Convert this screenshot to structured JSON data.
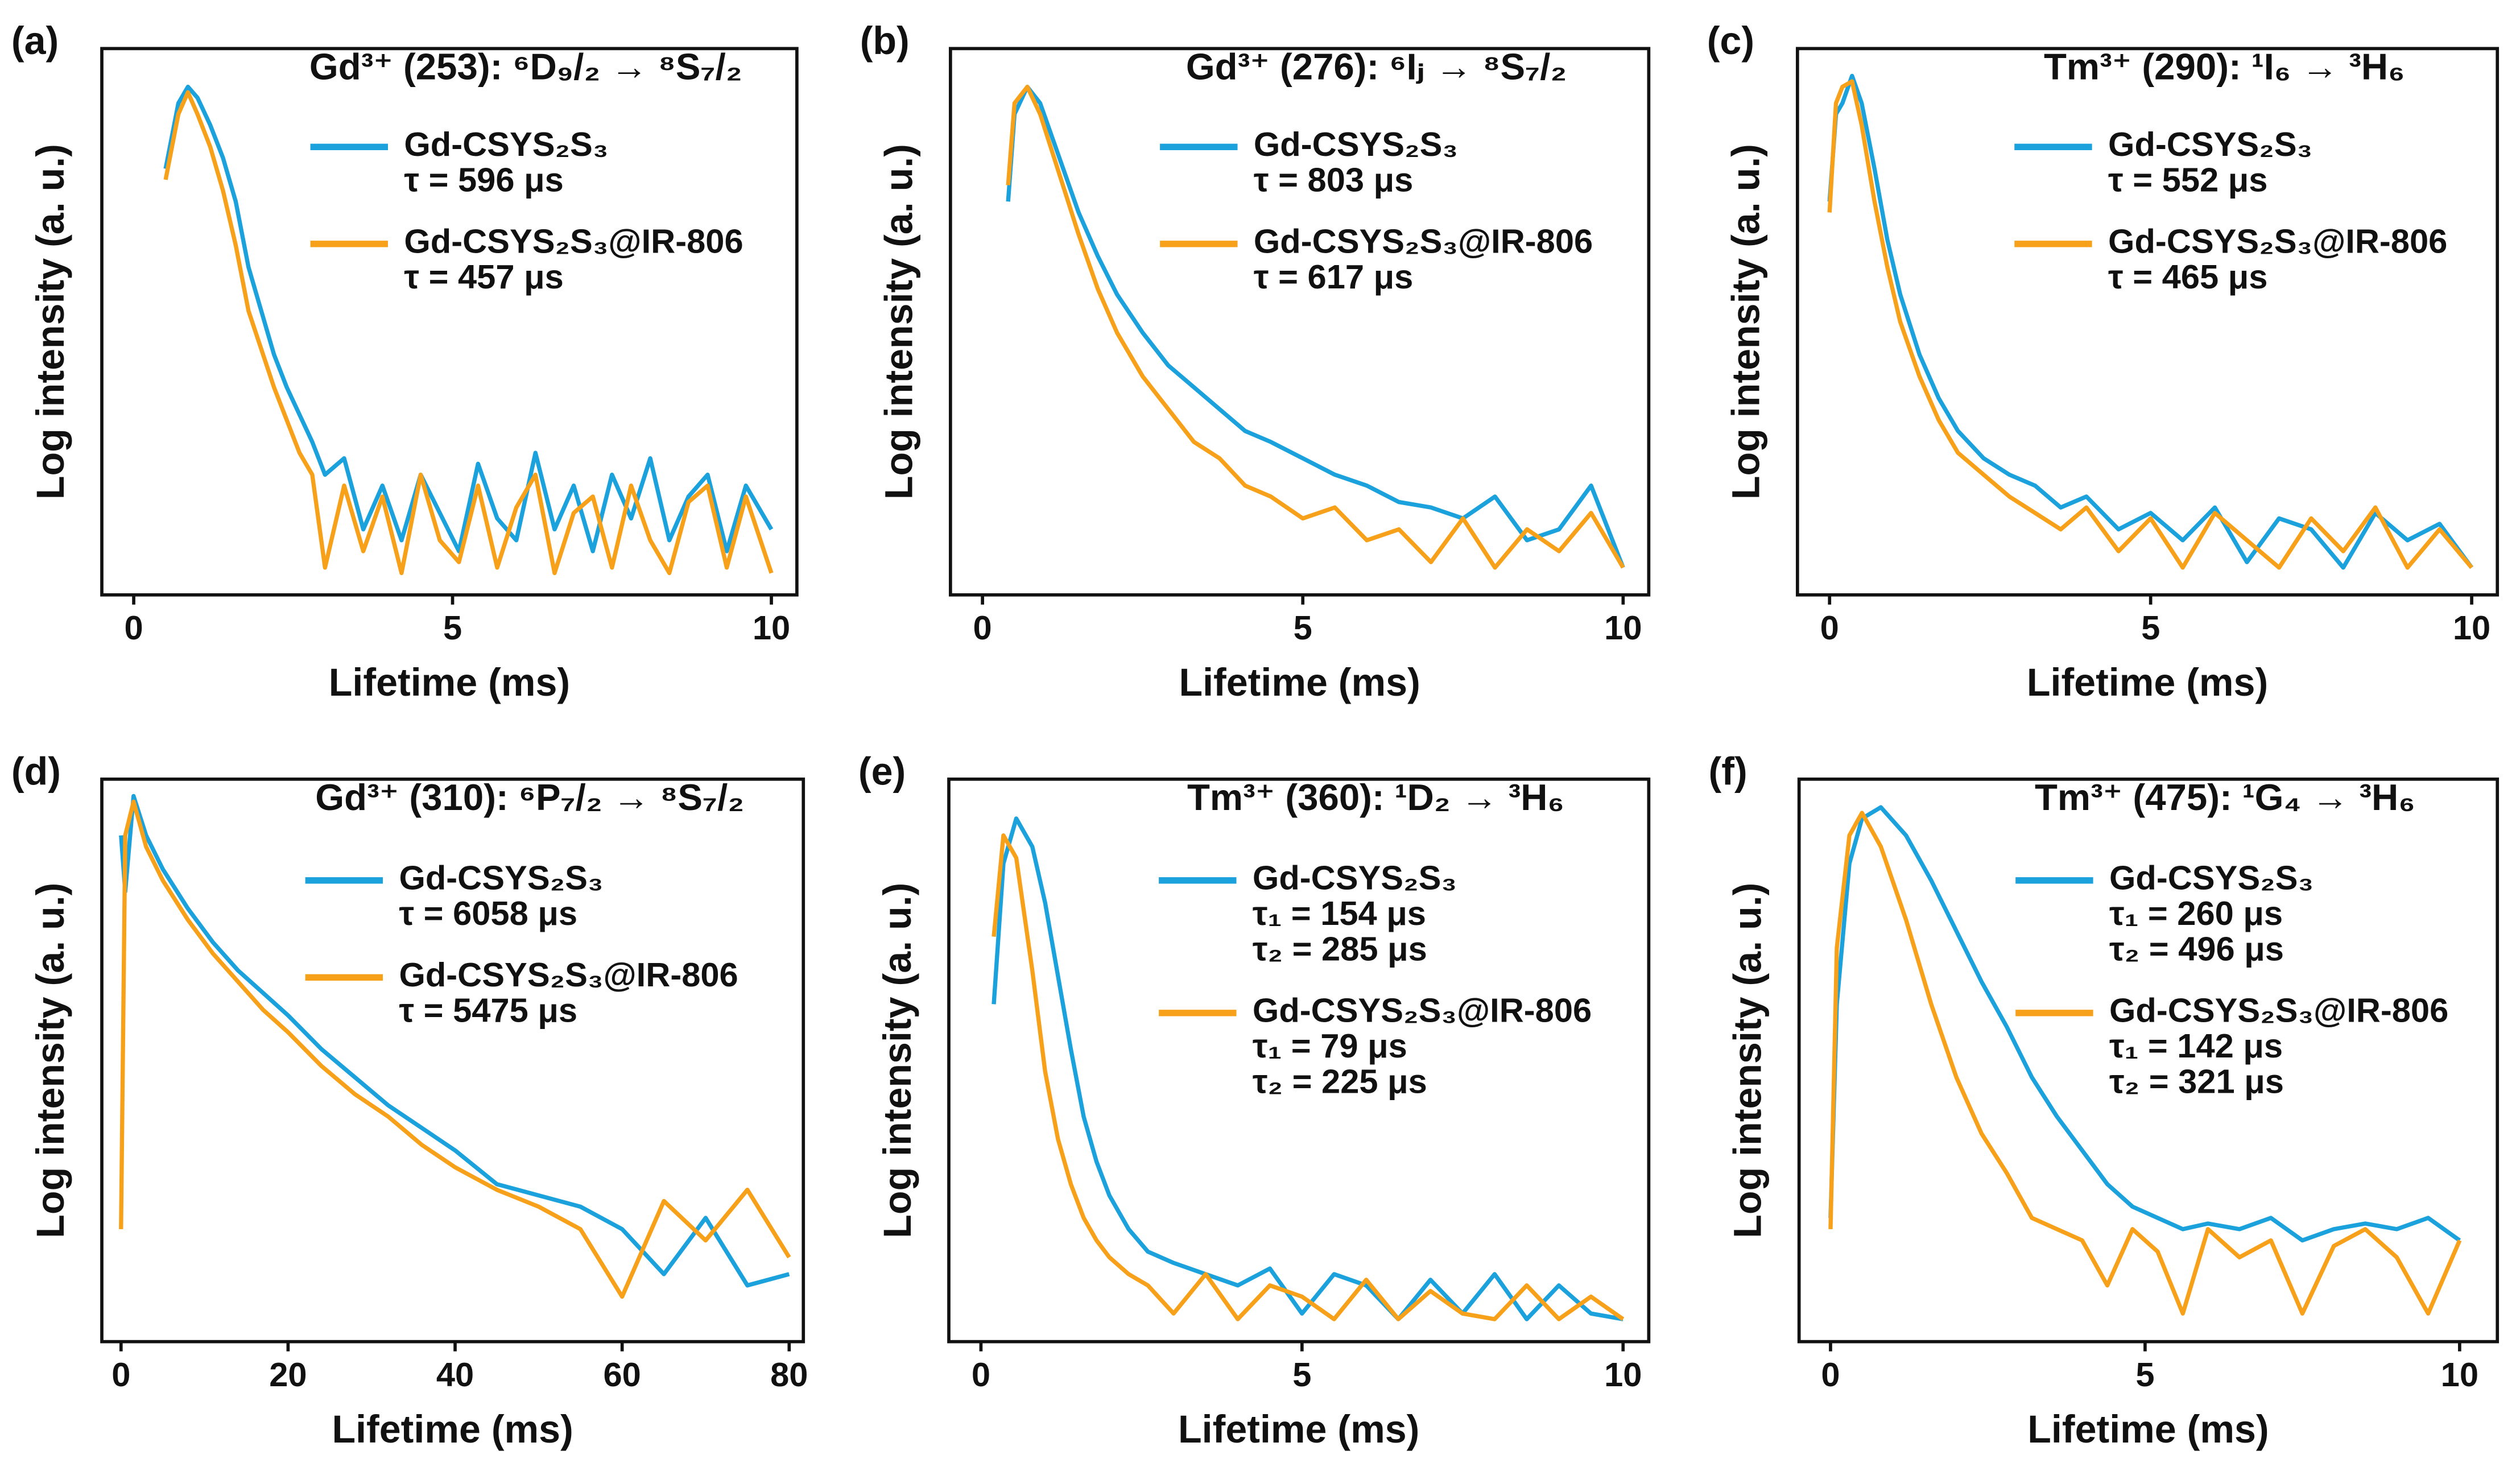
{
  "chart_data": [
    {
      "type": "line",
      "panel_label": "(a)",
      "title": "Gd³⁺ (253): ⁶D₉/₂ → ⁸S₇/₂",
      "x_label": "Lifetime (ms)",
      "y_label": "Log intensity (a. u.)",
      "xlim": [
        -0.5,
        10.4
      ],
      "xticks": [
        0,
        5,
        10
      ],
      "ylim": [
        0,
        1
      ],
      "x": [
        0.5,
        0.7,
        0.85,
        1.0,
        1.2,
        1.4,
        1.6,
        1.8,
        2.0,
        2.2,
        2.4,
        2.6,
        2.8,
        3.0,
        3.3,
        3.6,
        3.9,
        4.2,
        4.5,
        4.8,
        5.1,
        5.4,
        5.7,
        6.0,
        6.3,
        6.6,
        6.9,
        7.2,
        7.5,
        7.8,
        8.1,
        8.4,
        8.7,
        9.0,
        9.3,
        9.6,
        10.0
      ],
      "series": [
        {
          "name": "Gd-CSYS₂S₃",
          "color": "#1ba1db",
          "annotations": [
            "τ = 596 μs"
          ],
          "values": [
            0.78,
            0.9,
            0.93,
            0.91,
            0.86,
            0.8,
            0.72,
            0.6,
            0.52,
            0.44,
            0.38,
            0.33,
            0.28,
            0.22,
            0.25,
            0.12,
            0.2,
            0.1,
            0.22,
            0.15,
            0.08,
            0.24,
            0.14,
            0.1,
            0.26,
            0.12,
            0.2,
            0.08,
            0.22,
            0.14,
            0.25,
            0.1,
            0.18,
            0.22,
            0.08,
            0.2,
            0.12
          ]
        },
        {
          "name": "Gd-CSYS₂S₃@IR-806",
          "color": "#f7a11a",
          "annotations": [
            "τ = 457 μs"
          ],
          "values": [
            0.76,
            0.88,
            0.92,
            0.88,
            0.82,
            0.74,
            0.64,
            0.52,
            0.45,
            0.38,
            0.32,
            0.26,
            0.22,
            0.05,
            0.2,
            0.08,
            0.18,
            0.04,
            0.22,
            0.1,
            0.06,
            0.2,
            0.05,
            0.16,
            0.22,
            0.04,
            0.15,
            0.18,
            0.05,
            0.2,
            0.1,
            0.04,
            0.17,
            0.2,
            0.05,
            0.18,
            0.04
          ]
        }
      ]
    },
    {
      "type": "line",
      "panel_label": "(b)",
      "title": "Gd³⁺ (276): ⁶Iⱼ → ⁸S₇/₂",
      "x_label": "Lifetime (ms)",
      "y_label": "Log intensity (a. u.)",
      "xlim": [
        -0.5,
        10.4
      ],
      "xticks": [
        0,
        5,
        10
      ],
      "ylim": [
        0,
        1
      ],
      "x": [
        0.4,
        0.5,
        0.7,
        0.9,
        1.2,
        1.5,
        1.8,
        2.1,
        2.5,
        2.9,
        3.3,
        3.7,
        4.1,
        4.5,
        5.0,
        5.5,
        6.0,
        6.5,
        7.0,
        7.5,
        8.0,
        8.5,
        9.0,
        9.5,
        10.0
      ],
      "series": [
        {
          "name": "Gd-CSYS₂S₃",
          "color": "#1ba1db",
          "annotations": [
            "τ = 803 μs"
          ],
          "values": [
            0.72,
            0.88,
            0.93,
            0.9,
            0.8,
            0.7,
            0.62,
            0.55,
            0.48,
            0.42,
            0.38,
            0.34,
            0.3,
            0.28,
            0.25,
            0.22,
            0.2,
            0.17,
            0.16,
            0.14,
            0.18,
            0.1,
            0.12,
            0.2,
            0.05
          ]
        },
        {
          "name": "Gd-CSYS₂S₃@IR-806",
          "color": "#f7a11a",
          "annotations": [
            "τ = 617 μs"
          ],
          "values": [
            0.75,
            0.9,
            0.93,
            0.88,
            0.77,
            0.66,
            0.56,
            0.48,
            0.4,
            0.34,
            0.28,
            0.25,
            0.2,
            0.18,
            0.14,
            0.16,
            0.1,
            0.12,
            0.06,
            0.14,
            0.05,
            0.12,
            0.08,
            0.15,
            0.05
          ]
        }
      ]
    },
    {
      "type": "line",
      "panel_label": "(c)",
      "title": "Tm³⁺ (290): ¹I₆ → ³H₆",
      "x_label": "Lifetime (ms)",
      "y_label": "Log intensity (a. u.)",
      "xlim": [
        -0.5,
        10.4
      ],
      "xticks": [
        0,
        5,
        10
      ],
      "ylim": [
        0,
        1
      ],
      "x": [
        0,
        0.1,
        0.2,
        0.35,
        0.5,
        0.7,
        0.9,
        1.1,
        1.4,
        1.7,
        2.0,
        2.4,
        2.8,
        3.2,
        3.6,
        4.0,
        4.5,
        5.0,
        5.5,
        6.0,
        6.5,
        7.0,
        7.5,
        8.0,
        8.5,
        9.0,
        9.5,
        10.0
      ],
      "series": [
        {
          "name": "Gd-CSYS₂S₃",
          "color": "#1ba1db",
          "annotations": [
            "τ = 552 μs"
          ],
          "values": [
            0.72,
            0.88,
            0.9,
            0.95,
            0.9,
            0.78,
            0.65,
            0.55,
            0.44,
            0.36,
            0.3,
            0.25,
            0.22,
            0.2,
            0.16,
            0.18,
            0.12,
            0.15,
            0.1,
            0.16,
            0.06,
            0.14,
            0.12,
            0.05,
            0.15,
            0.1,
            0.13,
            0.05
          ]
        },
        {
          "name": "Gd-CSYS₂S₃@IR-806",
          "color": "#f7a11a",
          "annotations": [
            "τ = 465 μs"
          ],
          "values": [
            0.7,
            0.9,
            0.93,
            0.94,
            0.86,
            0.72,
            0.6,
            0.5,
            0.4,
            0.32,
            0.26,
            0.22,
            0.18,
            0.15,
            0.12,
            0.16,
            0.08,
            0.14,
            0.05,
            0.15,
            0.1,
            0.05,
            0.14,
            0.08,
            0.16,
            0.05,
            0.12,
            0.05
          ]
        }
      ]
    },
    {
      "type": "line",
      "panel_label": "(d)",
      "title": "Gd³⁺ (310): ⁶P₇/₂ → ⁸S₇/₂",
      "x_label": "Lifetime (ms)",
      "y_label": "Log intensity (a. u.)",
      "xlim": [
        -2.3,
        81.7
      ],
      "xticks": [
        0,
        20,
        40,
        60,
        80
      ],
      "ylim": [
        0,
        1
      ],
      "x": [
        0,
        0.5,
        1.5,
        3,
        5,
        8,
        11,
        14,
        17,
        20,
        24,
        28,
        32,
        36,
        40,
        45,
        50,
        55,
        60,
        65,
        70,
        75,
        80
      ],
      "series": [
        {
          "name": "Gd-CSYS₂S₃",
          "color": "#1ba1db",
          "annotations": [
            "τ = 6058 μs"
          ],
          "values": [
            0.9,
            0.8,
            0.97,
            0.9,
            0.84,
            0.77,
            0.71,
            0.66,
            0.62,
            0.58,
            0.52,
            0.47,
            0.42,
            0.38,
            0.34,
            0.28,
            0.26,
            0.24,
            0.2,
            0.12,
            0.22,
            0.1,
            0.12
          ]
        },
        {
          "name": "Gd-CSYS₂S₃@IR-806",
          "color": "#f7a11a",
          "annotations": [
            "τ = 5475 μs"
          ],
          "values": [
            0.2,
            0.9,
            0.96,
            0.88,
            0.82,
            0.75,
            0.69,
            0.64,
            0.59,
            0.55,
            0.49,
            0.44,
            0.4,
            0.35,
            0.31,
            0.27,
            0.24,
            0.2,
            0.08,
            0.25,
            0.18,
            0.27,
            0.15
          ]
        }
      ]
    },
    {
      "type": "line",
      "panel_label": "(e)",
      "title": "Tm³⁺ (360): ¹D₂ → ³H₆",
      "x_label": "Lifetime (ms)",
      "y_label": "Log intensity (a. u.)",
      "xlim": [
        -0.5,
        10.4
      ],
      "xticks": [
        0,
        5,
        10
      ],
      "ylim": [
        0,
        1
      ],
      "x": [
        0.2,
        0.35,
        0.55,
        0.8,
        1.0,
        1.2,
        1.4,
        1.6,
        1.8,
        2.0,
        2.3,
        2.6,
        3.0,
        3.5,
        4.0,
        4.5,
        5.0,
        5.5,
        6.0,
        6.5,
        7.0,
        7.5,
        8.0,
        8.5,
        9.0,
        9.5,
        10.0
      ],
      "series": [
        {
          "name": "Gd-CSYS₂S₃",
          "color": "#1ba1db",
          "annotations": [
            "τ₁ = 154 μs",
            "τ₂ = 285 μs"
          ],
          "values": [
            0.6,
            0.85,
            0.93,
            0.88,
            0.78,
            0.65,
            0.52,
            0.4,
            0.32,
            0.26,
            0.2,
            0.16,
            0.14,
            0.12,
            0.1,
            0.13,
            0.05,
            0.12,
            0.1,
            0.04,
            0.11,
            0.05,
            0.12,
            0.04,
            0.1,
            0.05,
            0.04
          ]
        },
        {
          "name": "Gd-CSYS₂S₃@IR-806",
          "color": "#f7a11a",
          "annotations": [
            "τ₁ = 79 μs",
            "τ₂ = 225 μs"
          ],
          "values": [
            0.72,
            0.9,
            0.86,
            0.66,
            0.48,
            0.36,
            0.28,
            0.22,
            0.18,
            0.15,
            0.12,
            0.1,
            0.05,
            0.12,
            0.04,
            0.1,
            0.08,
            0.04,
            0.11,
            0.04,
            0.09,
            0.05,
            0.04,
            0.1,
            0.04,
            0.08,
            0.04
          ]
        }
      ]
    },
    {
      "type": "line",
      "panel_label": "(f)",
      "title": "Tm³⁺ (475): ¹G₄ → ³H₆",
      "x_label": "Lifetime (ms)",
      "y_label": "Log intensity (a. u.)",
      "xlim": [
        -0.5,
        10.6
      ],
      "xticks": [
        0,
        5,
        10
      ],
      "ylim": [
        0,
        1
      ],
      "x": [
        0,
        0.1,
        0.3,
        0.5,
        0.8,
        1.2,
        1.6,
        2.0,
        2.4,
        2.8,
        3.2,
        3.6,
        4.0,
        4.4,
        4.8,
        5.2,
        5.6,
        6.0,
        6.5,
        7.0,
        7.5,
        8.0,
        8.5,
        9.0,
        9.5,
        10.0
      ],
      "series": [
        {
          "name": "Gd-CSYS₂S₃",
          "color": "#1ba1db",
          "annotations": [
            "τ₁ = 260 μs",
            "τ₂ = 496 μs"
          ],
          "values": [
            0.22,
            0.6,
            0.85,
            0.93,
            0.95,
            0.9,
            0.82,
            0.73,
            0.64,
            0.56,
            0.47,
            0.4,
            0.34,
            0.28,
            0.24,
            0.22,
            0.2,
            0.21,
            0.2,
            0.22,
            0.18,
            0.2,
            0.21,
            0.2,
            0.22,
            0.18
          ]
        },
        {
          "name": "Gd-CSYS₂S₃@IR-806",
          "color": "#f7a11a",
          "annotations": [
            "τ₁ = 142 μs",
            "τ₂ = 321 μs"
          ],
          "values": [
            0.2,
            0.7,
            0.9,
            0.94,
            0.88,
            0.75,
            0.6,
            0.47,
            0.37,
            0.3,
            0.22,
            0.2,
            0.18,
            0.1,
            0.2,
            0.16,
            0.05,
            0.2,
            0.15,
            0.18,
            0.05,
            0.17,
            0.2,
            0.15,
            0.05,
            0.18
          ]
        }
      ]
    }
  ]
}
